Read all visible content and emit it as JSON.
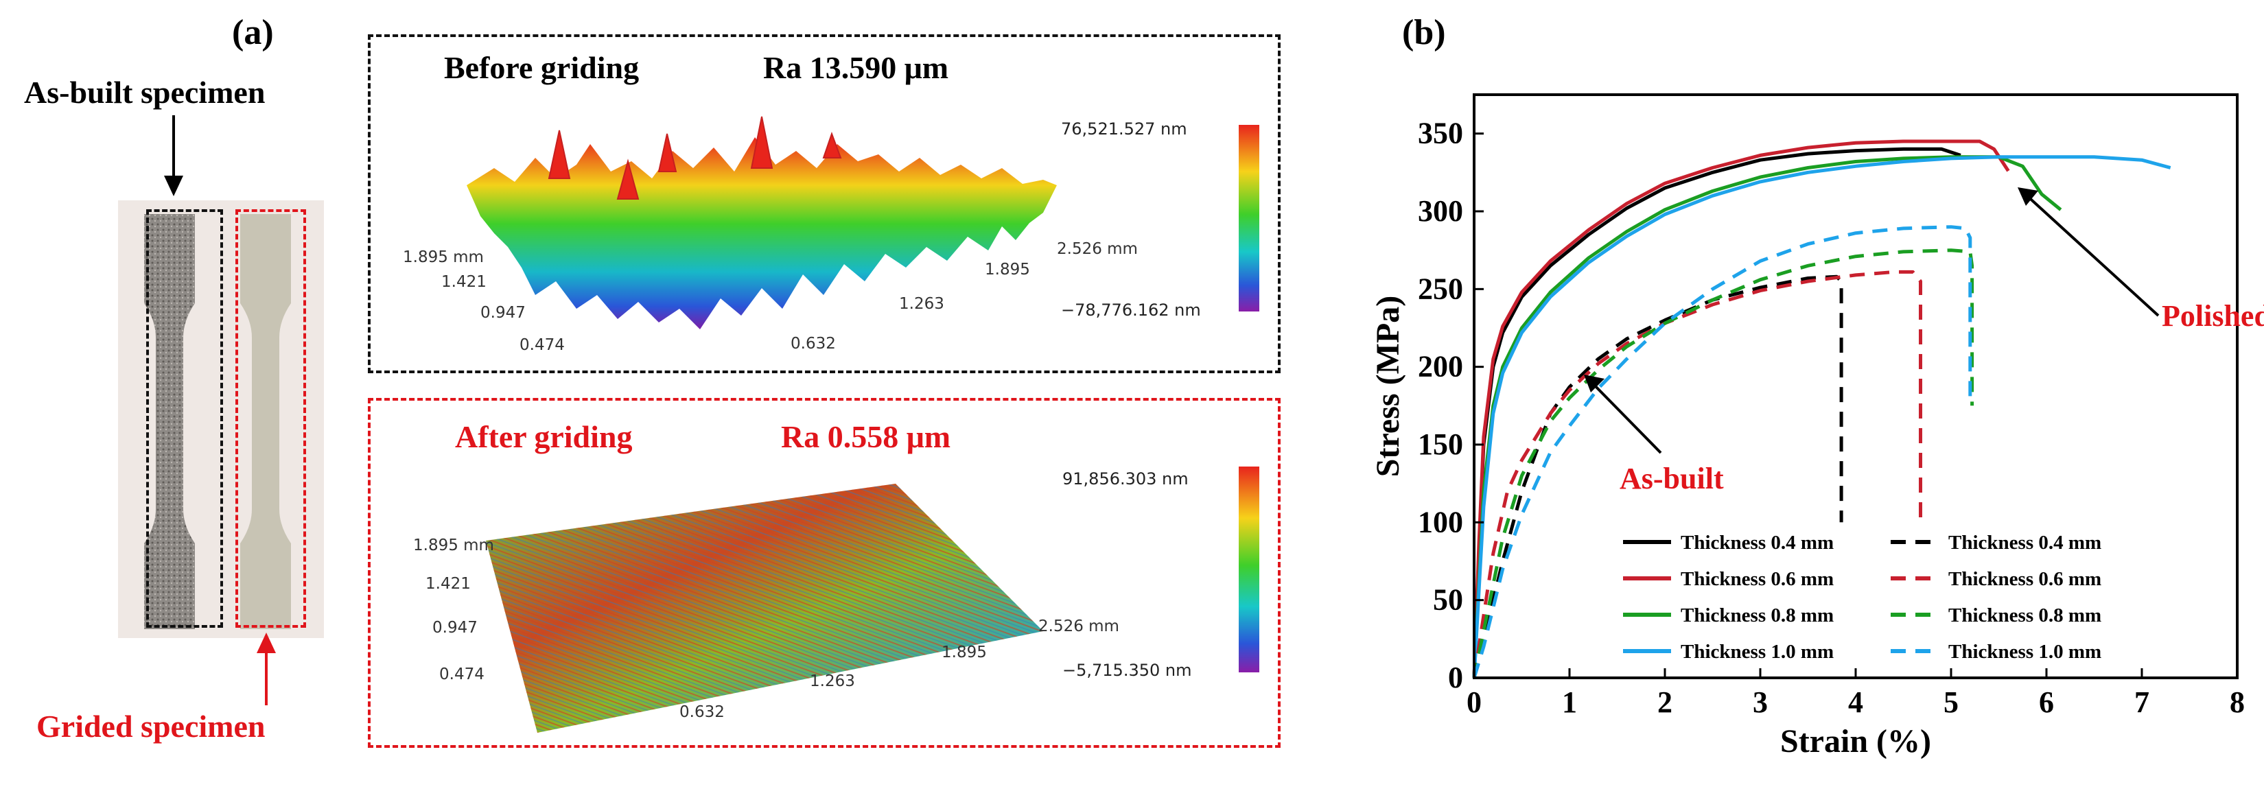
{
  "panel_a": {
    "label": "(a)",
    "as_built_label": "As-built specimen",
    "grided_label": "Grided specimen",
    "before": {
      "title": "Before griding",
      "ra": "Ra 13.590 μm",
      "scale_max": "76,521.527 nm",
      "scale_min": "−78,776.162 nm",
      "axis_left": [
        "1.895 mm",
        "1.421",
        "0.947",
        "0.474"
      ],
      "axis_bottom": [
        "0.632",
        "1.263",
        "1.895",
        "2.526 mm"
      ]
    },
    "after": {
      "title": "After griding",
      "ra": "Ra 0.558 μm",
      "scale_max": "91,856.303 nm",
      "scale_min": "−5,715.350 nm",
      "axis_left": [
        "1.895 mm",
        "1.421",
        "0.947",
        "0.474"
      ],
      "axis_bottom": [
        "0.632",
        "1.263",
        "1.895",
        "2.526 mm"
      ]
    }
  },
  "panel_b": {
    "label": "(b)",
    "annotation_polished": "Polished",
    "annotation_asbuilt": "As-built"
  },
  "colors": {
    "black": "#000000",
    "red": "#c8202e",
    "green": "#1a9e22",
    "blue": "#1ea3ea",
    "annot_red": "#e0151b"
  },
  "chart_data": {
    "type": "line",
    "xlabel": "Strain (%)",
    "ylabel": "Stress (MPa)",
    "xlim": [
      0,
      8
    ],
    "ylim": [
      0,
      375
    ],
    "xticks": [
      0,
      1,
      2,
      3,
      4,
      5,
      6,
      7,
      8
    ],
    "yticks": [
      0,
      50,
      100,
      150,
      200,
      250,
      300,
      350
    ],
    "legend_position": "bottom",
    "series": [
      {
        "name": "Thickness 0.4 mm",
        "group": "Polished",
        "style": "solid",
        "color": "#000000",
        "x": [
          0,
          0.05,
          0.1,
          0.2,
          0.3,
          0.5,
          0.8,
          1.2,
          1.6,
          2.0,
          2.5,
          3.0,
          3.5,
          4.0,
          4.5,
          4.9,
          5.1
        ],
        "y": [
          0,
          80,
          150,
          200,
          222,
          245,
          265,
          285,
          302,
          315,
          325,
          333,
          337,
          339,
          340,
          340,
          336
        ]
      },
      {
        "name": "Thickness 0.6 mm",
        "group": "Polished",
        "style": "solid",
        "color": "#c8202e",
        "x": [
          0,
          0.05,
          0.1,
          0.2,
          0.3,
          0.5,
          0.8,
          1.2,
          1.6,
          2.0,
          2.5,
          3.0,
          3.5,
          4.0,
          4.5,
          5.0,
          5.3,
          5.45,
          5.6
        ],
        "y": [
          0,
          85,
          155,
          205,
          226,
          248,
          268,
          288,
          305,
          318,
          328,
          336,
          341,
          344,
          345,
          345,
          345,
          340,
          326
        ]
      },
      {
        "name": "Thickness 0.8 mm",
        "group": "Polished",
        "style": "solid",
        "color": "#1a9e22",
        "x": [
          0,
          0.05,
          0.1,
          0.2,
          0.3,
          0.5,
          0.8,
          1.2,
          1.6,
          2.0,
          2.5,
          3.0,
          3.5,
          4.0,
          4.5,
          5.0,
          5.5,
          5.75,
          5.95,
          6.15
        ],
        "y": [
          0,
          60,
          120,
          175,
          200,
          225,
          248,
          270,
          287,
          301,
          313,
          322,
          328,
          332,
          334,
          335,
          335,
          329,
          311,
          301
        ]
      },
      {
        "name": "Thickness 1.0 mm",
        "group": "Polished",
        "style": "solid",
        "color": "#1ea3ea",
        "x": [
          0,
          0.05,
          0.1,
          0.2,
          0.3,
          0.5,
          0.8,
          1.2,
          1.6,
          2.0,
          2.5,
          3.0,
          3.5,
          4.0,
          4.5,
          5.0,
          5.5,
          6.0,
          6.5,
          7.0,
          7.3
        ],
        "y": [
          0,
          55,
          110,
          170,
          196,
          222,
          245,
          267,
          284,
          298,
          310,
          319,
          325,
          329,
          332,
          334,
          335,
          335,
          335,
          333,
          328
        ]
      },
      {
        "name": "Thickness 0.4 mm",
        "group": "As-built",
        "style": "dashed",
        "color": "#000000",
        "x": [
          0,
          0.1,
          0.2,
          0.3,
          0.5,
          0.8,
          1.0,
          1.3,
          1.6,
          2.0,
          2.5,
          3.0,
          3.5,
          3.8,
          3.85,
          3.85
        ],
        "y": [
          0,
          25,
          50,
          75,
          120,
          170,
          187,
          205,
          218,
          230,
          243,
          251,
          257,
          258,
          255,
          100
        ]
      },
      {
        "name": "Thickness 0.6 mm",
        "group": "As-built",
        "style": "dashed",
        "color": "#c8202e",
        "x": [
          0,
          0.1,
          0.2,
          0.35,
          0.5,
          0.8,
          1.0,
          1.3,
          1.6,
          2.0,
          2.5,
          3.0,
          3.5,
          4.0,
          4.4,
          4.6,
          4.68,
          4.68
        ],
        "y": [
          0,
          40,
          80,
          120,
          140,
          170,
          185,
          202,
          215,
          228,
          240,
          249,
          255,
          259,
          261,
          261,
          255,
          102
        ]
      },
      {
        "name": "Thickness 0.8 mm",
        "group": "As-built",
        "style": "dashed",
        "color": "#1a9e22",
        "x": [
          0,
          0.1,
          0.2,
          0.3,
          0.5,
          0.8,
          1.0,
          1.3,
          1.6,
          2.0,
          2.5,
          3.0,
          3.5,
          4.0,
          4.5,
          5.0,
          5.2,
          5.22,
          5.22
        ],
        "y": [
          0,
          30,
          60,
          90,
          130,
          165,
          180,
          198,
          213,
          228,
          243,
          256,
          265,
          271,
          274,
          275,
          274,
          265,
          175
        ]
      },
      {
        "name": "Thickness 1.0 mm",
        "group": "As-built",
        "style": "dashed",
        "color": "#1ea3ea",
        "x": [
          0,
          0.1,
          0.2,
          0.3,
          0.5,
          0.8,
          1.0,
          1.3,
          1.6,
          2.0,
          2.5,
          3.0,
          3.5,
          4.0,
          4.5,
          5.0,
          5.15,
          5.2,
          5.2
        ],
        "y": [
          0,
          20,
          45,
          70,
          105,
          145,
          162,
          186,
          205,
          228,
          250,
          268,
          279,
          286,
          289,
          290,
          289,
          283,
          175
        ]
      }
    ]
  }
}
